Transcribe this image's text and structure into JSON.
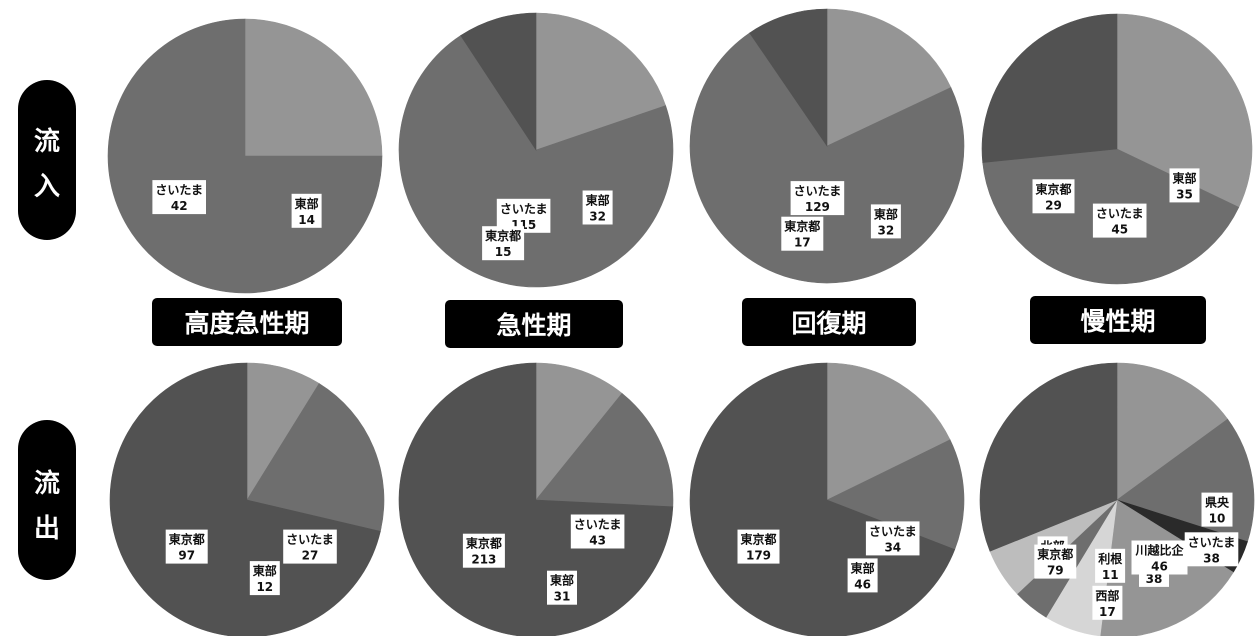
{
  "row_labels": [
    {
      "line1": "流",
      "line2": "入"
    },
    {
      "line1": "流",
      "line2": "出"
    }
  ],
  "period_labels": [
    "高度急性期",
    "急性期",
    "回復期",
    "慢性期"
  ],
  "colors": {
    "light": "#959595",
    "mid": "#6e6e6e",
    "dark": "#525252",
    "lighter": "#bdbdbd",
    "pale": "#d6d6d6",
    "darkest": "#2a2a2a"
  },
  "chart_data": [
    {
      "type": "pie",
      "row": "流入",
      "period": "高度急性期",
      "slices": [
        {
          "label": "東部",
          "value": 14,
          "color": "#959595"
        },
        {
          "label": "さいたま",
          "value": 42,
          "color": "#6e6e6e"
        }
      ]
    },
    {
      "type": "pie",
      "row": "流入",
      "period": "急性期",
      "slices": [
        {
          "label": "東部",
          "value": 32,
          "color": "#959595"
        },
        {
          "label": "さいたま",
          "value": 115,
          "color": "#6e6e6e"
        },
        {
          "label": "東京都",
          "value": 15,
          "color": "#525252"
        }
      ]
    },
    {
      "type": "pie",
      "row": "流入",
      "period": "回復期",
      "slices": [
        {
          "label": "東部",
          "value": 32,
          "color": "#959595"
        },
        {
          "label": "さいたま",
          "value": 129,
          "color": "#6e6e6e"
        },
        {
          "label": "東京都",
          "value": 17,
          "color": "#525252"
        }
      ]
    },
    {
      "type": "pie",
      "row": "流入",
      "period": "慢性期",
      "slices": [
        {
          "label": "東部",
          "value": 35,
          "color": "#959595"
        },
        {
          "label": "さいたま",
          "value": 45,
          "color": "#6e6e6e"
        },
        {
          "label": "東京都",
          "value": 29,
          "color": "#525252"
        }
      ]
    },
    {
      "type": "pie",
      "row": "流出",
      "period": "高度急性期",
      "slices": [
        {
          "label": "東部",
          "value": 12,
          "color": "#959595"
        },
        {
          "label": "さいたま",
          "value": 27,
          "color": "#6e6e6e"
        },
        {
          "label": "東京都",
          "value": 97,
          "color": "#525252"
        }
      ]
    },
    {
      "type": "pie",
      "row": "流出",
      "period": "急性期",
      "slices": [
        {
          "label": "東部",
          "value": 31,
          "color": "#959595"
        },
        {
          "label": "さいたま",
          "value": 43,
          "color": "#6e6e6e"
        },
        {
          "label": "東京都",
          "value": 213,
          "color": "#525252"
        }
      ]
    },
    {
      "type": "pie",
      "row": "流出",
      "period": "回復期",
      "slices": [
        {
          "label": "東部",
          "value": 46,
          "color": "#959595"
        },
        {
          "label": "さいたま",
          "value": 34,
          "color": "#6e6e6e"
        },
        {
          "label": "東京都",
          "value": 179,
          "color": "#525252"
        }
      ]
    },
    {
      "type": "pie",
      "row": "流出",
      "period": "慢性期",
      "slices": [
        {
          "label": "東部",
          "value": 38,
          "color": "#959595"
        },
        {
          "label": "さいたま",
          "value": 38,
          "color": "#6e6e6e"
        },
        {
          "label": "県央",
          "value": 10,
          "color": "#2a2a2a"
        },
        {
          "label": "川越比企",
          "value": 46,
          "color": "#959595"
        },
        {
          "label": "西部",
          "value": 17,
          "color": "#d6d6d6"
        },
        {
          "label": "利根",
          "value": 11,
          "color": "#6e6e6e"
        },
        {
          "label": "北部",
          "value": 15,
          "color": "#bdbdbd"
        },
        {
          "label": "東京都",
          "value": 79,
          "color": "#525252"
        }
      ]
    }
  ]
}
